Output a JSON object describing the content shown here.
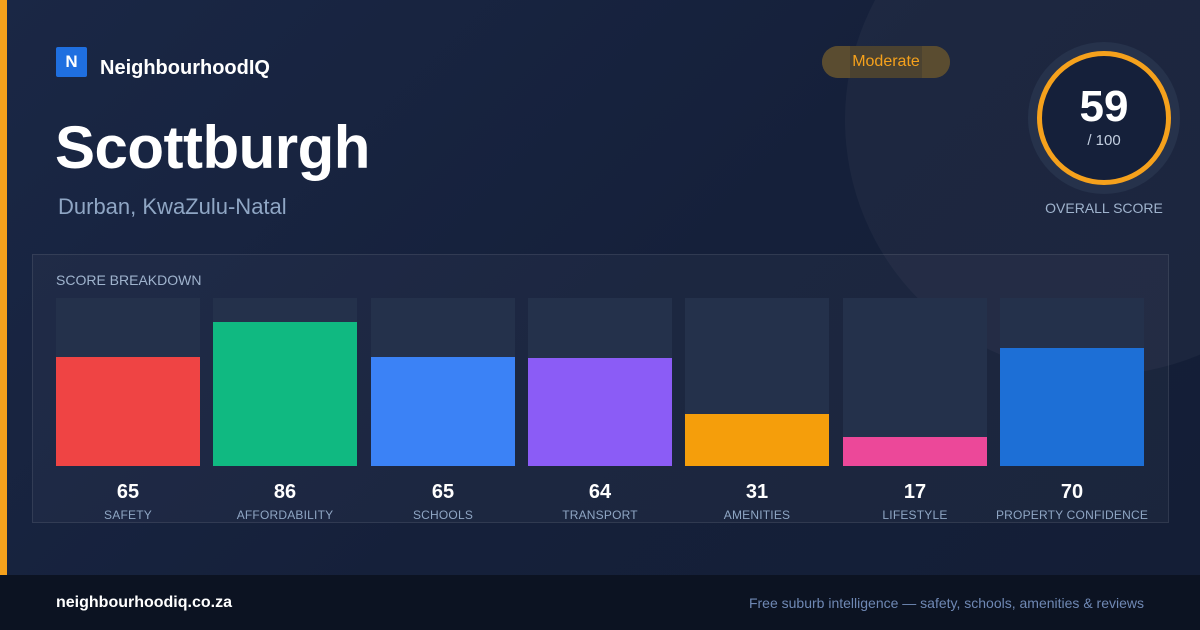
{
  "brand": {
    "logo_letter": "N",
    "name": "NeighbourhoodIQ"
  },
  "suburb": {
    "name": "Scottburgh",
    "location": "Durban, KwaZulu-Natal"
  },
  "rating_badge": "Moderate",
  "overall": {
    "score": "59",
    "max": "/ 100",
    "label": "OVERALL SCORE"
  },
  "breakdown": {
    "title": "SCORE BREAKDOWN",
    "items": [
      {
        "label": "SAFETY",
        "value": "65",
        "color": "#ef4444"
      },
      {
        "label": "AFFORDABILITY",
        "value": "86",
        "color": "#10b981"
      },
      {
        "label": "SCHOOLS",
        "value": "65",
        "color": "#3b82f6"
      },
      {
        "label": "TRANSPORT",
        "value": "64",
        "color": "#8b5cf6"
      },
      {
        "label": "AMENITIES",
        "value": "31",
        "color": "#f59e0b"
      },
      {
        "label": "LIFESTYLE",
        "value": "17",
        "color": "#ec4899"
      },
      {
        "label": "PROPERTY CONFIDENCE",
        "value": "70",
        "color": "#1d6fd6"
      }
    ]
  },
  "footer": {
    "url": "neighbourhoodiq.co.za",
    "tagline": "Free suburb intelligence — safety, schools, amenities & reviews"
  },
  "colors": {
    "accent": "#f5a11c",
    "background": "#15203a"
  }
}
